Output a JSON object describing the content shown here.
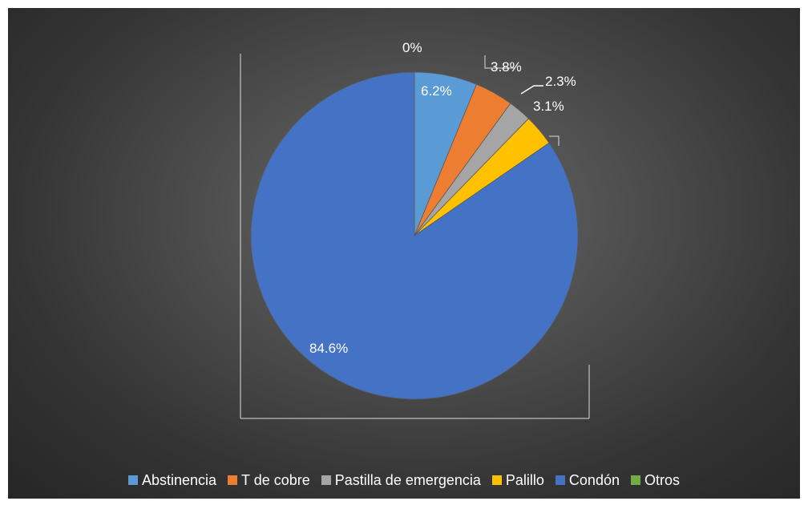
{
  "chart_data": {
    "type": "pie",
    "title": "",
    "legend_position": "bottom",
    "slices": [
      {
        "name": "Abstinencia",
        "value": 6.2,
        "label": "6.2%",
        "color": "#5b9bd5"
      },
      {
        "name": "T de cobre",
        "value": 3.8,
        "label": "3.8%",
        "color": "#ed7d31"
      },
      {
        "name": "Pastilla de emergencia",
        "value": 2.3,
        "label": "2.3%",
        "color": "#a5a5a5"
      },
      {
        "name": "Palillo",
        "value": 3.1,
        "label": "3.1%",
        "color": "#ffc000"
      },
      {
        "name": "Condón",
        "value": 84.6,
        "label": "84.6%",
        "color": "#4472c4"
      },
      {
        "name": "Otros",
        "value": 0,
        "label": "0%",
        "color": "#70ad47"
      }
    ]
  }
}
